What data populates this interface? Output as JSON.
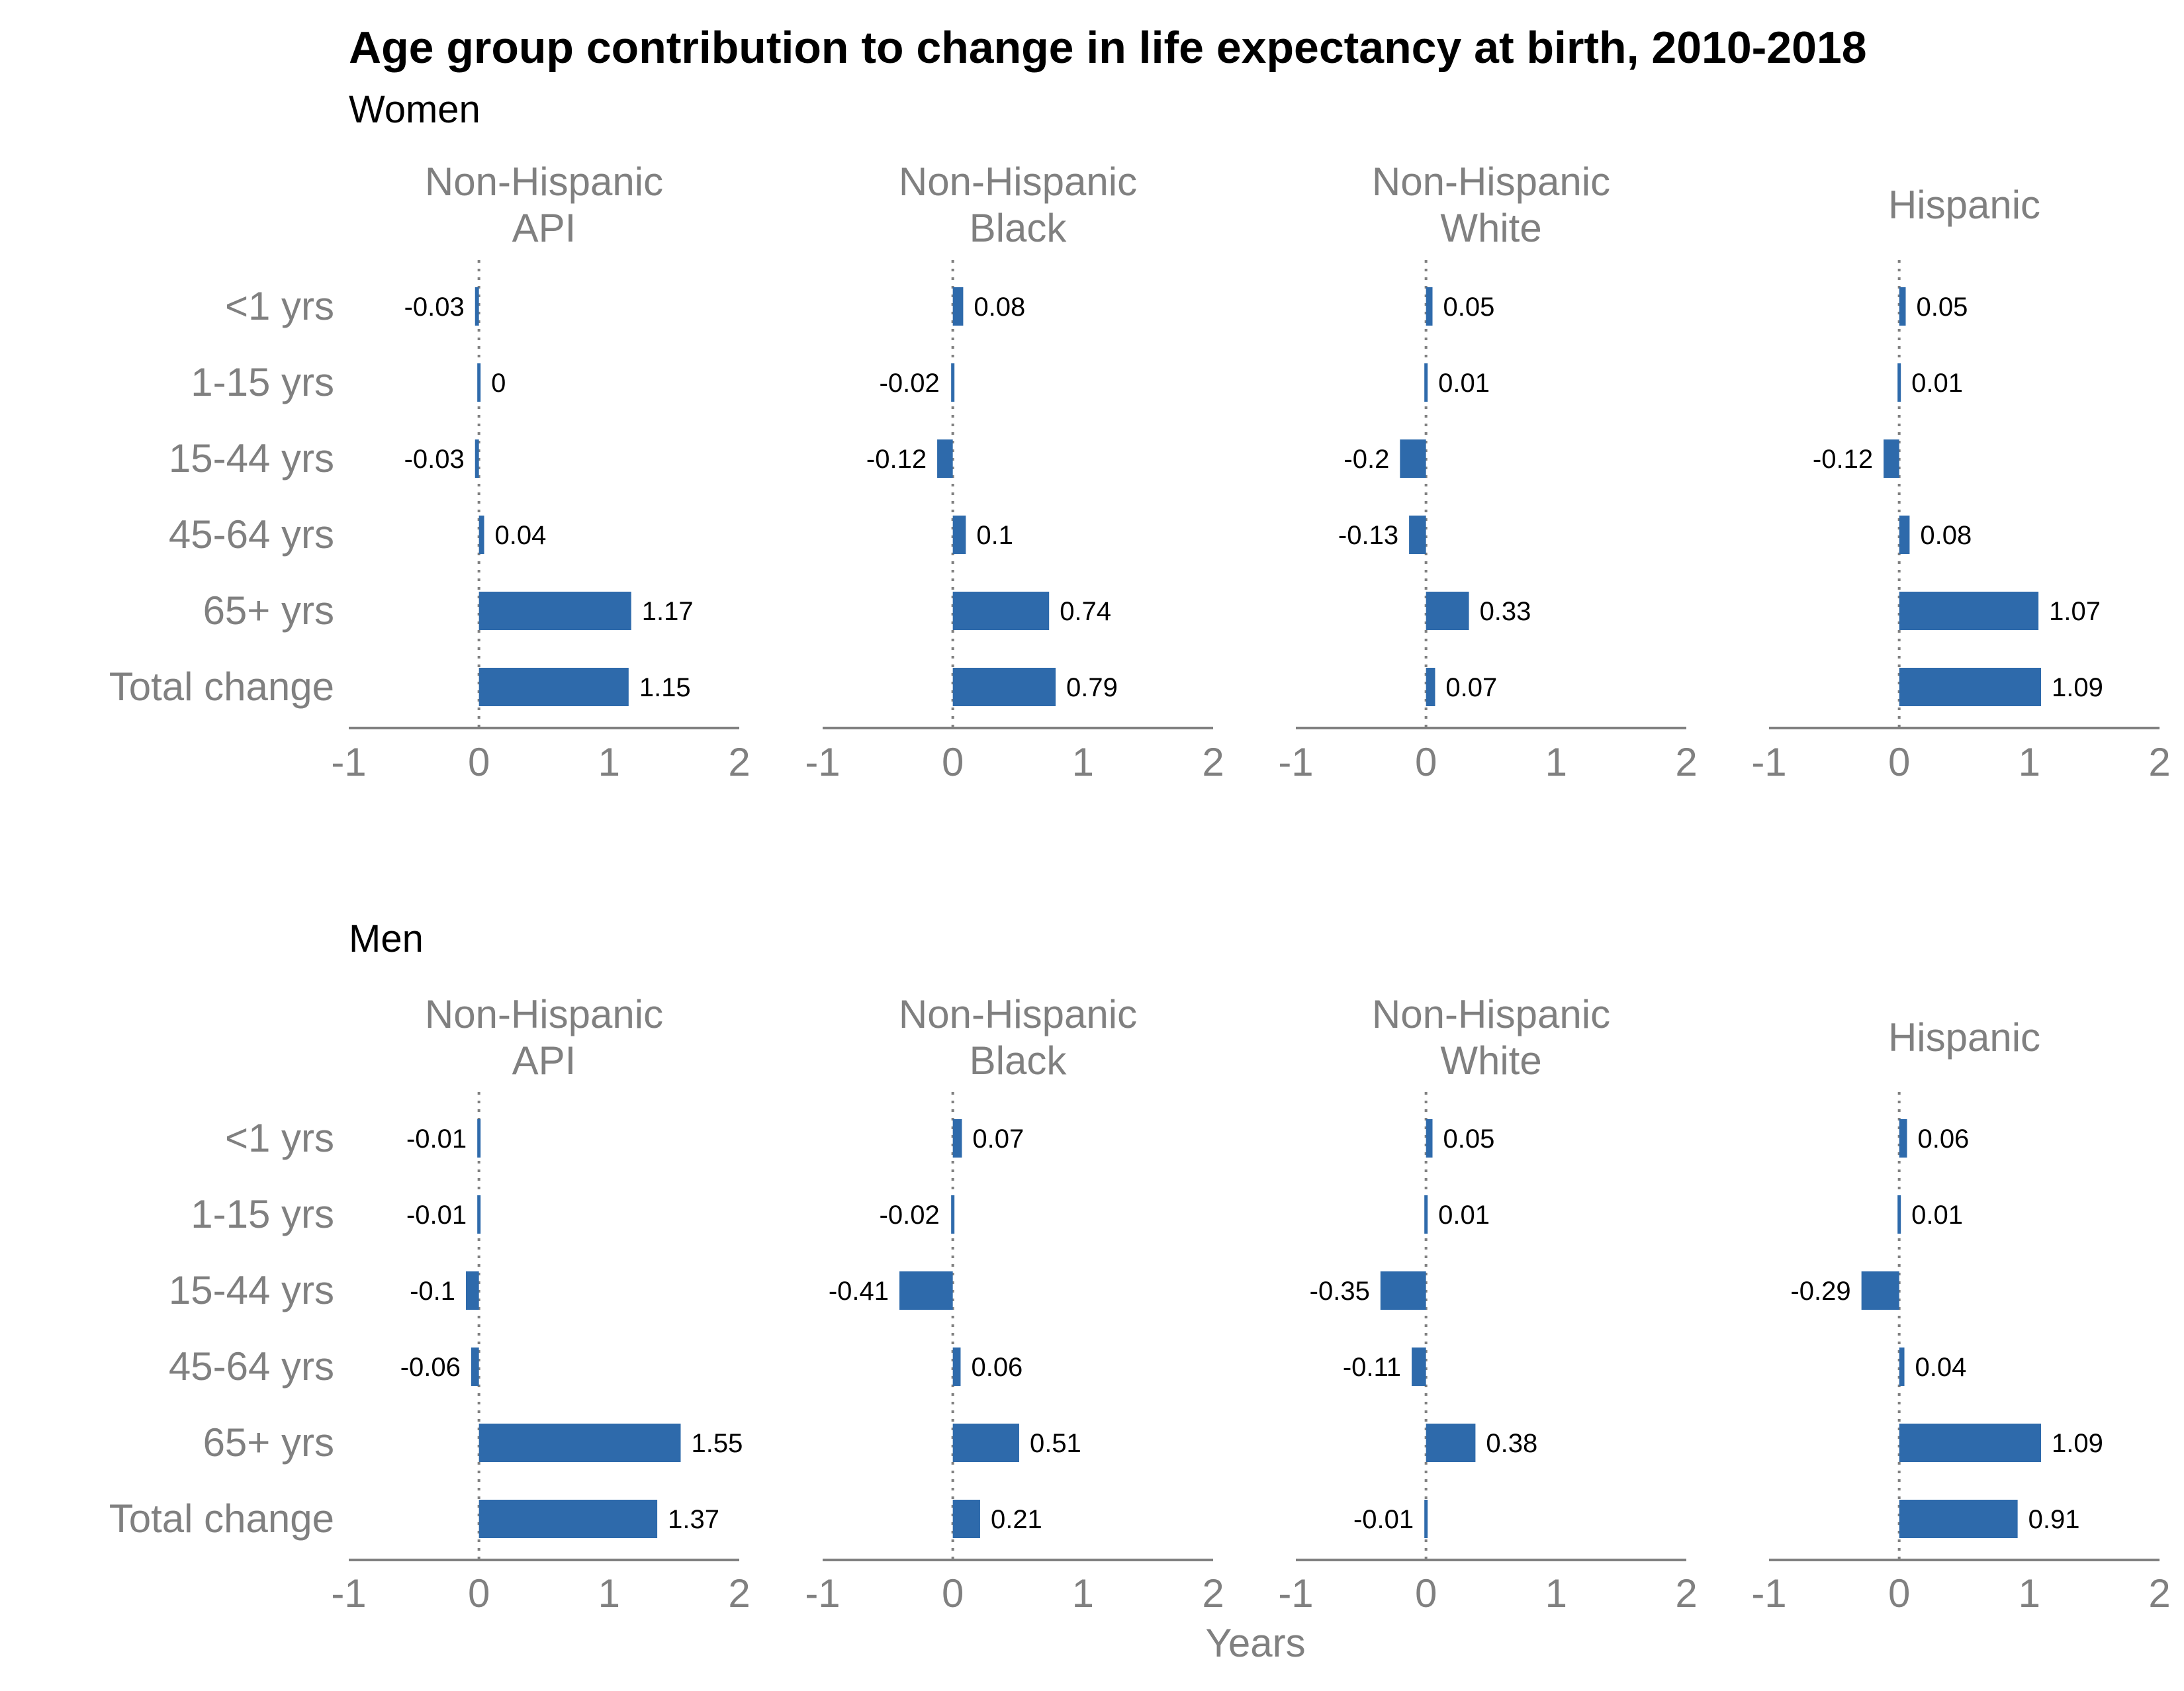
{
  "chart_data": {
    "type": "bar",
    "orientation": "horizontal",
    "title": "Age group contribution to change in life expectancy at birth, 2010-2018",
    "xlabel": "Years",
    "ylabel": "",
    "xlim": [
      -1,
      2
    ],
    "x_ticks": [
      -1,
      0,
      1,
      2
    ],
    "x_tick_labels": [
      "-1",
      "0",
      "1",
      "2"
    ],
    "grid": false,
    "reference_line": 0,
    "bar_color": "#2e6aab",
    "axis_color": "#808080",
    "categories": [
      "<1 yrs",
      "1-15 yrs",
      "15-44 yrs",
      "45-64 yrs",
      "65+ yrs",
      "Total change"
    ],
    "groups": [
      {
        "name": "Women",
        "panels": [
          {
            "title": [
              "Non-Hispanic",
              "API"
            ],
            "values": [
              -0.03,
              0,
              -0.03,
              0.04,
              1.17,
              1.15
            ],
            "labels": [
              "-0.03",
              "0",
              "-0.03",
              "0.04",
              "1.17",
              "1.15"
            ]
          },
          {
            "title": [
              "Non-Hispanic",
              "Black"
            ],
            "values": [
              0.08,
              -0.02,
              -0.12,
              0.1,
              0.74,
              0.79
            ],
            "labels": [
              "0.08",
              "-0.02",
              "-0.12",
              "0.1",
              "0.74",
              "0.79"
            ]
          },
          {
            "title": [
              "Non-Hispanic",
              "White"
            ],
            "values": [
              0.05,
              0.01,
              -0.2,
              -0.13,
              0.33,
              0.07
            ],
            "labels": [
              "0.05",
              "0.01",
              "-0.2",
              "-0.13",
              "0.33",
              "0.07"
            ]
          },
          {
            "title": [
              "Hispanic"
            ],
            "values": [
              0.05,
              0.01,
              -0.12,
              0.08,
              1.07,
              1.09
            ],
            "labels": [
              "0.05",
              "0.01",
              "-0.12",
              "0.08",
              "1.07",
              "1.09"
            ]
          }
        ]
      },
      {
        "name": "Men",
        "panels": [
          {
            "title": [
              "Non-Hispanic",
              "API"
            ],
            "values": [
              -0.01,
              -0.01,
              -0.1,
              -0.06,
              1.55,
              1.37
            ],
            "labels": [
              "-0.01",
              "-0.01",
              "-0.1",
              "-0.06",
              "1.55",
              "1.37"
            ]
          },
          {
            "title": [
              "Non-Hispanic",
              "Black"
            ],
            "values": [
              0.07,
              -0.02,
              -0.41,
              0.06,
              0.51,
              0.21
            ],
            "labels": [
              "0.07",
              "-0.02",
              "-0.41",
              "0.06",
              "0.51",
              "0.21"
            ]
          },
          {
            "title": [
              "Non-Hispanic",
              "White"
            ],
            "values": [
              0.05,
              0.01,
              -0.35,
              -0.11,
              0.38,
              -0.01
            ],
            "labels": [
              "0.05",
              "0.01",
              "-0.35",
              "-0.11",
              "0.38",
              "-0.01"
            ]
          },
          {
            "title": [
              "Hispanic"
            ],
            "values": [
              0.06,
              0.01,
              -0.29,
              0.04,
              1.09,
              0.91
            ],
            "labels": [
              "0.06",
              "0.01",
              "-0.29",
              "0.04",
              "1.09",
              "0.91"
            ]
          }
        ]
      }
    ]
  }
}
